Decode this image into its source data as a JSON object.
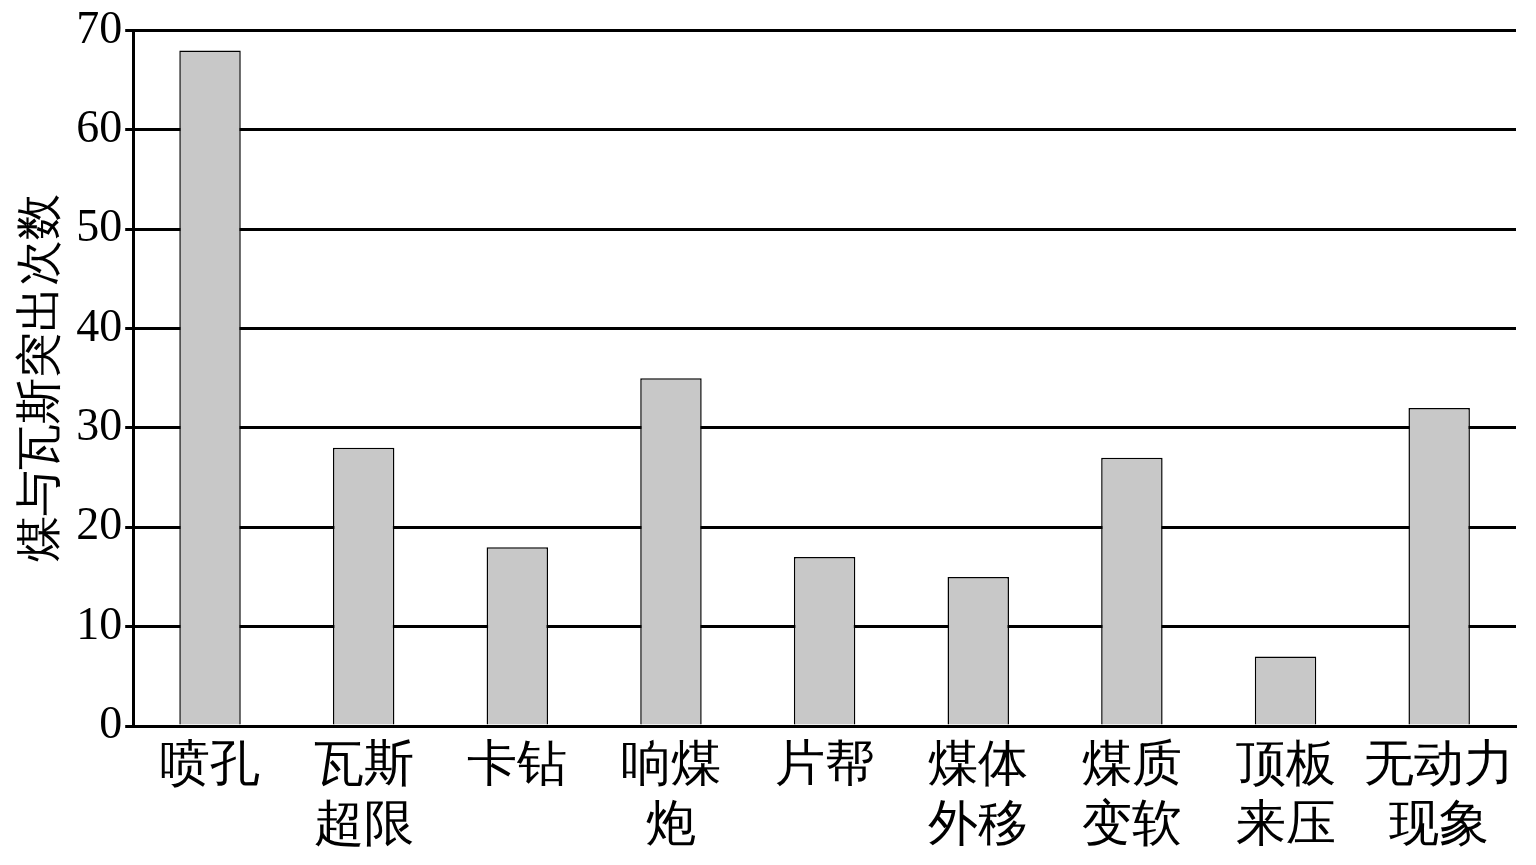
{
  "chart_data": {
    "type": "bar",
    "ylabel": "煤与瓦斯突出次数",
    "categories": [
      "喷孔",
      "瓦斯超限",
      "卡钻",
      "响煤炮",
      "片帮",
      "煤体外移",
      "煤质变软",
      "顶板来压",
      "无动力现象"
    ],
    "values": [
      68,
      28,
      18,
      35,
      17,
      15,
      27,
      7,
      32
    ],
    "color": "#c8c8c8",
    "ylim": [
      0,
      70
    ],
    "yticks": [
      0,
      10,
      20,
      30,
      40,
      50,
      60,
      70
    ],
    "grid": "y"
  }
}
